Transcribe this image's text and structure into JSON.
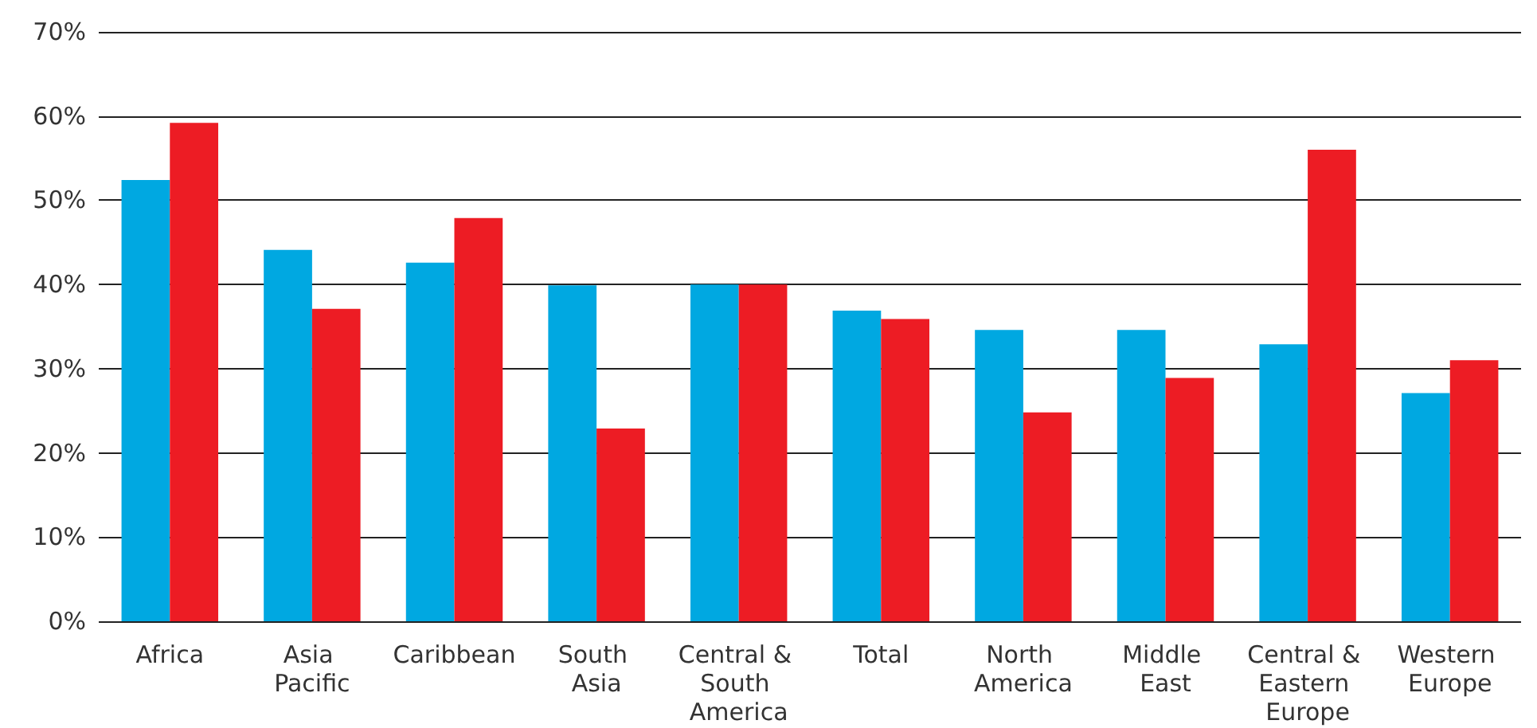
{
  "chart_data": {
    "type": "bar",
    "categories": [
      "Africa",
      "Asia Pacific",
      "Caribbean",
      "South Asia",
      "Central & South America",
      "Total",
      "North America",
      "Middle East",
      "Central & Eastern Europe",
      "Western Europe"
    ],
    "series": [
      {
        "color": "#00a8e1",
        "values": [
          52.4,
          44.1,
          42.6,
          39.9,
          40,
          36.9,
          34.6,
          34.6,
          32.9,
          27.1
        ]
      },
      {
        "color": "#ed1c24",
        "values": [
          59.2,
          37.1,
          47.9,
          22.9,
          40,
          35.9,
          24.8,
          28.9,
          56.0,
          31.0
        ]
      }
    ],
    "ylim": [
      0,
      70
    ],
    "yticks": [
      {
        "value": 0,
        "label": "0%"
      },
      {
        "value": 10,
        "label": "10%"
      },
      {
        "value": 20,
        "label": "20%"
      },
      {
        "value": 30,
        "label": "30%"
      },
      {
        "value": 40,
        "label": "40%"
      },
      {
        "value": 50,
        "label": "50%"
      },
      {
        "value": 60,
        "label": "60%"
      },
      {
        "value": 70,
        "label": "70%"
      }
    ],
    "grid": "y"
  }
}
